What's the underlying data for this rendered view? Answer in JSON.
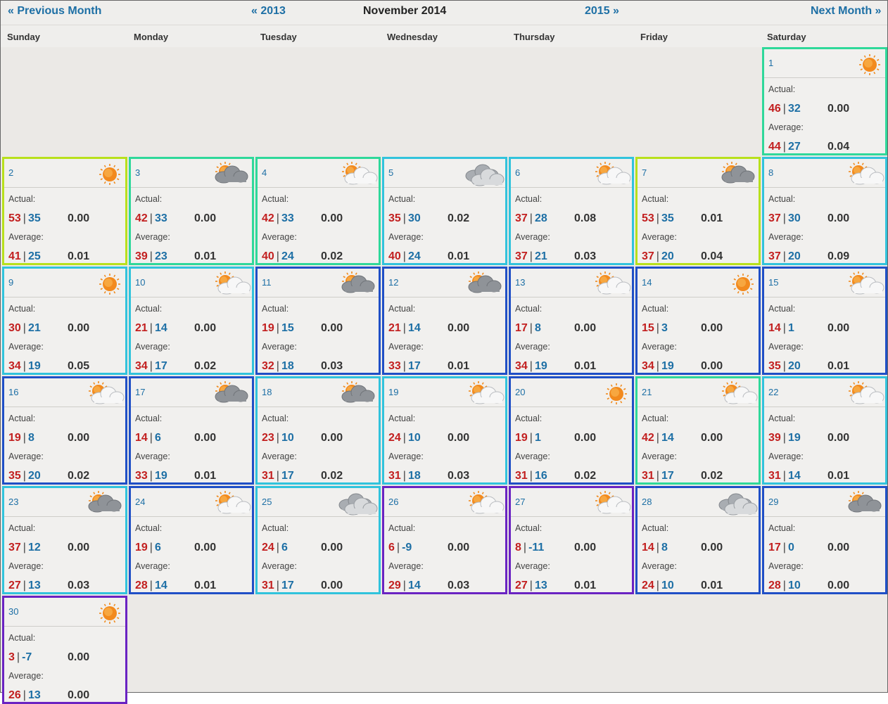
{
  "nav": {
    "prev_month": "« Previous Month",
    "prev_year": "« 2013",
    "title": "November 2014",
    "next_year": "2015 »",
    "next_month": "Next Month »"
  },
  "weekdays": [
    "Sunday",
    "Monday",
    "Tuesday",
    "Wednesday",
    "Thursday",
    "Friday",
    "Saturday"
  ],
  "labels": {
    "actual": "Actual:",
    "average": "Average:"
  },
  "colors": {
    "yellowgreen": "#b8e01c",
    "seafoam": "#2fd89a",
    "cyan": "#31c3dc",
    "blue": "#1f4fc6",
    "purple": "#6a23c2",
    "high": "#c21f1f",
    "low": "#1d6fa5"
  },
  "days": [
    {
      "num": "1",
      "icon": "sun",
      "border": "seafoam",
      "act_hi": "46",
      "act_lo": "32",
      "act_p": "0.00",
      "avg_hi": "44",
      "avg_lo": "27",
      "avg_p": "0.04"
    },
    {
      "num": "2",
      "icon": "sun",
      "border": "yellowgreen",
      "act_hi": "53",
      "act_lo": "35",
      "act_p": "0.00",
      "avg_hi": "41",
      "avg_lo": "25",
      "avg_p": "0.01"
    },
    {
      "num": "3",
      "icon": "sun-cloud",
      "border": "seafoam",
      "act_hi": "42",
      "act_lo": "33",
      "act_p": "0.00",
      "avg_hi": "39",
      "avg_lo": "23",
      "avg_p": "0.01"
    },
    {
      "num": "4",
      "icon": "sun-light-cloud",
      "border": "seafoam",
      "act_hi": "42",
      "act_lo": "33",
      "act_p": "0.00",
      "avg_hi": "40",
      "avg_lo": "24",
      "avg_p": "0.02"
    },
    {
      "num": "5",
      "icon": "cloud",
      "border": "cyan",
      "act_hi": "35",
      "act_lo": "30",
      "act_p": "0.02",
      "avg_hi": "40",
      "avg_lo": "24",
      "avg_p": "0.01"
    },
    {
      "num": "6",
      "icon": "sun-light-cloud",
      "border": "cyan",
      "act_hi": "37",
      "act_lo": "28",
      "act_p": "0.08",
      "avg_hi": "37",
      "avg_lo": "21",
      "avg_p": "0.03"
    },
    {
      "num": "7",
      "icon": "sun-cloud",
      "border": "yellowgreen",
      "act_hi": "53",
      "act_lo": "35",
      "act_p": "0.01",
      "avg_hi": "37",
      "avg_lo": "20",
      "avg_p": "0.04"
    },
    {
      "num": "8",
      "icon": "sun-light-cloud",
      "border": "cyan",
      "act_hi": "37",
      "act_lo": "30",
      "act_p": "0.00",
      "avg_hi": "37",
      "avg_lo": "20",
      "avg_p": "0.09"
    },
    {
      "num": "9",
      "icon": "sun",
      "border": "cyan",
      "act_hi": "30",
      "act_lo": "21",
      "act_p": "0.00",
      "avg_hi": "34",
      "avg_lo": "19",
      "avg_p": "0.05"
    },
    {
      "num": "10",
      "icon": "sun-light-cloud",
      "border": "cyan",
      "act_hi": "21",
      "act_lo": "14",
      "act_p": "0.00",
      "avg_hi": "34",
      "avg_lo": "17",
      "avg_p": "0.02"
    },
    {
      "num": "11",
      "icon": "sun-cloud",
      "border": "blue",
      "act_hi": "19",
      "act_lo": "15",
      "act_p": "0.00",
      "avg_hi": "32",
      "avg_lo": "18",
      "avg_p": "0.03"
    },
    {
      "num": "12",
      "icon": "sun-cloud",
      "border": "blue",
      "act_hi": "21",
      "act_lo": "14",
      "act_p": "0.00",
      "avg_hi": "33",
      "avg_lo": "17",
      "avg_p": "0.01"
    },
    {
      "num": "13",
      "icon": "sun-light-cloud",
      "border": "blue",
      "act_hi": "17",
      "act_lo": "8",
      "act_p": "0.00",
      "avg_hi": "34",
      "avg_lo": "19",
      "avg_p": "0.01"
    },
    {
      "num": "14",
      "icon": "sun",
      "border": "blue",
      "act_hi": "15",
      "act_lo": "3",
      "act_p": "0.00",
      "avg_hi": "34",
      "avg_lo": "19",
      "avg_p": "0.00"
    },
    {
      "num": "15",
      "icon": "sun-light-cloud",
      "border": "blue",
      "act_hi": "14",
      "act_lo": "1",
      "act_p": "0.00",
      "avg_hi": "35",
      "avg_lo": "20",
      "avg_p": "0.01"
    },
    {
      "num": "16",
      "icon": "sun-light-cloud",
      "border": "blue",
      "act_hi": "19",
      "act_lo": "8",
      "act_p": "0.00",
      "avg_hi": "35",
      "avg_lo": "20",
      "avg_p": "0.02"
    },
    {
      "num": "17",
      "icon": "sun-cloud",
      "border": "blue",
      "act_hi": "14",
      "act_lo": "6",
      "act_p": "0.00",
      "avg_hi": "33",
      "avg_lo": "19",
      "avg_p": "0.01"
    },
    {
      "num": "18",
      "icon": "sun-cloud",
      "border": "cyan",
      "act_hi": "23",
      "act_lo": "10",
      "act_p": "0.00",
      "avg_hi": "31",
      "avg_lo": "17",
      "avg_p": "0.02"
    },
    {
      "num": "19",
      "icon": "sun-light-cloud",
      "border": "cyan",
      "act_hi": "24",
      "act_lo": "10",
      "act_p": "0.00",
      "avg_hi": "31",
      "avg_lo": "18",
      "avg_p": "0.03"
    },
    {
      "num": "20",
      "icon": "sun",
      "border": "blue",
      "act_hi": "19",
      "act_lo": "1",
      "act_p": "0.00",
      "avg_hi": "31",
      "avg_lo": "16",
      "avg_p": "0.02"
    },
    {
      "num": "21",
      "icon": "sun-light-cloud",
      "border": "seafoam",
      "act_hi": "42",
      "act_lo": "14",
      "act_p": "0.00",
      "avg_hi": "31",
      "avg_lo": "17",
      "avg_p": "0.02"
    },
    {
      "num": "22",
      "icon": "sun-light-cloud",
      "border": "cyan",
      "act_hi": "39",
      "act_lo": "19",
      "act_p": "0.00",
      "avg_hi": "31",
      "avg_lo": "14",
      "avg_p": "0.01"
    },
    {
      "num": "23",
      "icon": "sun-cloud",
      "border": "cyan",
      "act_hi": "37",
      "act_lo": "12",
      "act_p": "0.00",
      "avg_hi": "27",
      "avg_lo": "13",
      "avg_p": "0.03"
    },
    {
      "num": "24",
      "icon": "sun-light-cloud",
      "border": "blue",
      "act_hi": "19",
      "act_lo": "6",
      "act_p": "0.00",
      "avg_hi": "28",
      "avg_lo": "14",
      "avg_p": "0.01"
    },
    {
      "num": "25",
      "icon": "cloud",
      "border": "cyan",
      "act_hi": "24",
      "act_lo": "6",
      "act_p": "0.00",
      "avg_hi": "31",
      "avg_lo": "17",
      "avg_p": "0.00"
    },
    {
      "num": "26",
      "icon": "sun-light-cloud",
      "border": "purple",
      "act_hi": "6",
      "act_lo": "-9",
      "act_p": "0.00",
      "avg_hi": "29",
      "avg_lo": "14",
      "avg_p": "0.03"
    },
    {
      "num": "27",
      "icon": "sun-light-cloud",
      "border": "purple",
      "act_hi": "8",
      "act_lo": "-11",
      "act_p": "0.00",
      "avg_hi": "27",
      "avg_lo": "13",
      "avg_p": "0.01"
    },
    {
      "num": "28",
      "icon": "cloud",
      "border": "blue",
      "act_hi": "14",
      "act_lo": "8",
      "act_p": "0.00",
      "avg_hi": "24",
      "avg_lo": "10",
      "avg_p": "0.01"
    },
    {
      "num": "29",
      "icon": "sun-cloud",
      "border": "blue",
      "act_hi": "17",
      "act_lo": "0",
      "act_p": "0.00",
      "avg_hi": "28",
      "avg_lo": "10",
      "avg_p": "0.00"
    },
    {
      "num": "30",
      "icon": "sun",
      "border": "purple",
      "act_hi": "3",
      "act_lo": "-7",
      "act_p": "0.00",
      "avg_hi": "26",
      "avg_lo": "13",
      "avg_p": "0.00"
    }
  ]
}
